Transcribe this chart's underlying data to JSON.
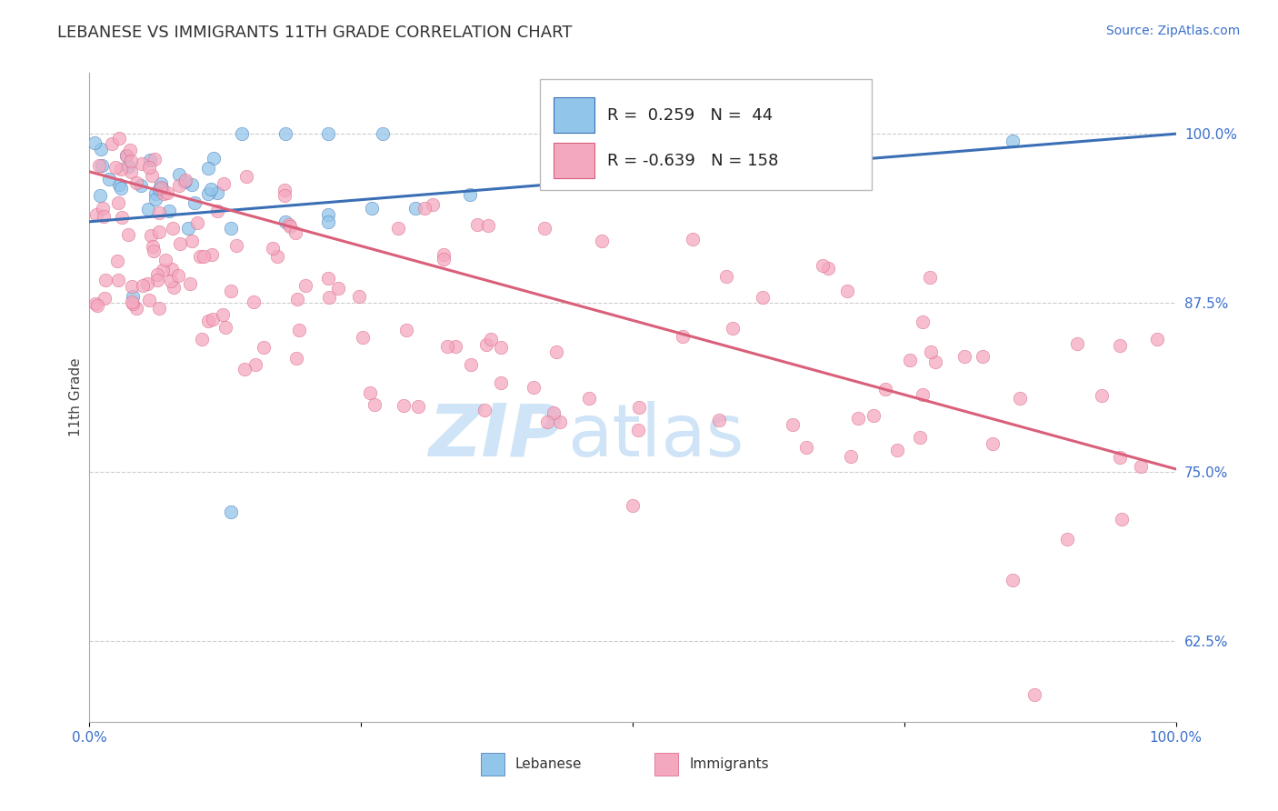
{
  "title": "LEBANESE VS IMMIGRANTS 11TH GRADE CORRELATION CHART",
  "source": "Source: ZipAtlas.com",
  "ylabel": "11th Grade",
  "y_ticks": [
    "62.5%",
    "75.0%",
    "87.5%",
    "100.0%"
  ],
  "y_tick_vals": [
    0.625,
    0.75,
    0.875,
    1.0
  ],
  "x_range": [
    0.0,
    1.0
  ],
  "y_range": [
    0.565,
    1.045
  ],
  "legend_r_lebanese": "0.259",
  "legend_n_lebanese": "44",
  "legend_r_immigrants": "-0.639",
  "legend_n_immigrants": "158",
  "color_lebanese": "#92C5EA",
  "color_immigrants": "#F4A8C0",
  "line_color_lebanese": "#3A6FB5",
  "line_color_immigrants": "#D95F7A",
  "watermark_color": "#D0E4F7",
  "leb_line_x0": 0.0,
  "leb_line_y0": 0.935,
  "leb_line_x1": 1.0,
  "leb_line_y1": 1.0,
  "imm_line_x0": 0.0,
  "imm_line_y0": 0.972,
  "imm_line_x1": 1.0,
  "imm_line_y1": 0.752
}
